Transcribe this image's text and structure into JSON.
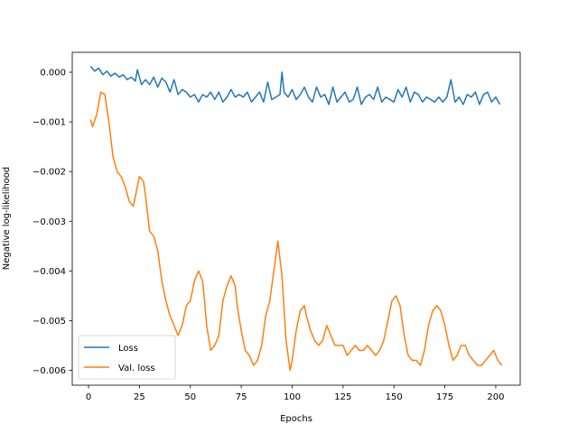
{
  "chart_data": {
    "type": "line",
    "title": "",
    "xlabel": "Epochs",
    "ylabel": "Negative log-likelihood",
    "xlim": [
      -8,
      212
    ],
    "ylim": [
      -0.0063,
      0.0004
    ],
    "xticks": [
      0,
      25,
      50,
      75,
      100,
      125,
      150,
      175,
      200
    ],
    "xtick_labels": [
      "0",
      "25",
      "50",
      "75",
      "100",
      "125",
      "150",
      "175",
      "200"
    ],
    "yticks": [
      0.0,
      -0.001,
      -0.002,
      -0.003,
      -0.004,
      -0.005,
      -0.006
    ],
    "ytick_labels": [
      "0.000",
      "−0.001",
      "−0.002",
      "−0.003",
      "−0.004",
      "−0.005",
      "−0.006"
    ],
    "grid": false,
    "legend_position": "lower-left",
    "series": [
      {
        "name": "Loss",
        "color": "#1f77b4",
        "x": [
          1,
          3,
          5,
          7,
          9,
          11,
          13,
          15,
          17,
          19,
          21,
          23,
          24,
          26,
          28,
          30,
          32,
          34,
          36,
          38,
          40,
          42,
          44,
          46,
          48,
          50,
          52,
          54,
          56,
          58,
          60,
          62,
          64,
          66,
          68,
          70,
          72,
          74,
          76,
          78,
          80,
          82,
          84,
          86,
          88,
          90,
          92,
          94,
          95,
          96,
          98,
          100,
          102,
          104,
          106,
          108,
          110,
          112,
          114,
          116,
          118,
          120,
          122,
          124,
          126,
          128,
          130,
          132,
          134,
          136,
          138,
          140,
          142,
          144,
          146,
          148,
          150,
          152,
          154,
          156,
          158,
          160,
          162,
          164,
          166,
          168,
          170,
          172,
          174,
          176,
          178,
          180,
          182,
          184,
          186,
          188,
          190,
          192,
          194,
          196,
          198,
          200,
          202
        ],
        "y": [
          0.00012,
          2e-05,
          8e-05,
          -5e-05,
          2e-05,
          -8e-05,
          -2e-05,
          -0.0001,
          -5e-05,
          -0.00015,
          -0.0001,
          -0.00018,
          5e-05,
          -0.00025,
          -0.00015,
          -0.00025,
          -0.0001,
          -0.0003,
          -0.00012,
          -0.0002,
          -0.0004,
          -0.00015,
          -0.00045,
          -0.00035,
          -0.0004,
          -0.0005,
          -0.00045,
          -0.0006,
          -0.00045,
          -0.0005,
          -0.0004,
          -0.00055,
          -0.0004,
          -0.0006,
          -0.0005,
          -0.00035,
          -0.0005,
          -0.00045,
          -0.0005,
          -0.0004,
          -0.0006,
          -0.0005,
          -0.0004,
          -0.0006,
          -0.0002,
          -0.00055,
          -0.0005,
          -0.00045,
          0.0,
          -0.0004,
          -0.0005,
          -0.00035,
          -0.00055,
          -0.00045,
          -0.0003,
          -0.0005,
          -0.0006,
          -0.0003,
          -0.0005,
          -0.00045,
          -0.00065,
          -0.0003,
          -0.0006,
          -0.0005,
          -0.0004,
          -0.0006,
          -0.00055,
          -0.0003,
          -0.00065,
          -0.0005,
          -0.00045,
          -0.00055,
          -0.0003,
          -0.0006,
          -0.0005,
          -0.00055,
          -0.0006,
          -0.00035,
          -0.0005,
          -0.0003,
          -0.0006,
          -0.0004,
          -0.00045,
          -0.0006,
          -0.0005,
          -0.00055,
          -0.0006,
          -0.0005,
          -0.0006,
          -0.0005,
          -0.00015,
          -0.0006,
          -0.0005,
          -0.00065,
          -0.00045,
          -0.0005,
          -0.0004,
          -0.00065,
          -0.00045,
          -0.0004,
          -0.0006,
          -0.0005,
          -0.00065
        ]
      },
      {
        "name": "Val. loss",
        "color": "#ff7f0e",
        "x": [
          1,
          2,
          4,
          6,
          8,
          10,
          12,
          14,
          16,
          18,
          20,
          22,
          24,
          25,
          27,
          28,
          30,
          32,
          34,
          36,
          38,
          40,
          42,
          44,
          46,
          48,
          50,
          52,
          54,
          56,
          57,
          58,
          60,
          62,
          64,
          66,
          68,
          70,
          72,
          73,
          75,
          77,
          79,
          81,
          83,
          85,
          87,
          89,
          91,
          93,
          95,
          97,
          99,
          100,
          102,
          104,
          106,
          107,
          109,
          111,
          113,
          115,
          117,
          119,
          121,
          123,
          125,
          127,
          129,
          131,
          133,
          135,
          137,
          139,
          141,
          143,
          145,
          147,
          149,
          151,
          153,
          155,
          157,
          159,
          161,
          163,
          165,
          167,
          169,
          171,
          173,
          175,
          177,
          179,
          181,
          183,
          185,
          187,
          189,
          191,
          193,
          195,
          197,
          199,
          201,
          203
        ],
        "y": [
          -0.00095,
          -0.0011,
          -0.00085,
          -0.0004,
          -0.00045,
          -0.001,
          -0.0017,
          -0.002,
          -0.0021,
          -0.0023,
          -0.0026,
          -0.0027,
          -0.0023,
          -0.0021,
          -0.0022,
          -0.0025,
          -0.0032,
          -0.0033,
          -0.0036,
          -0.0042,
          -0.0046,
          -0.0049,
          -0.0051,
          -0.0053,
          -0.0051,
          -0.0047,
          -0.0046,
          -0.0042,
          -0.004,
          -0.0042,
          -0.0046,
          -0.0051,
          -0.0056,
          -0.0055,
          -0.0053,
          -0.0046,
          -0.0043,
          -0.0041,
          -0.0043,
          -0.0047,
          -0.0052,
          -0.0056,
          -0.0057,
          -0.0059,
          -0.0058,
          -0.0055,
          -0.0049,
          -0.0046,
          -0.004,
          -0.0034,
          -0.0041,
          -0.0054,
          -0.006,
          -0.0058,
          -0.0052,
          -0.0048,
          -0.0047,
          -0.0049,
          -0.0052,
          -0.0054,
          -0.0055,
          -0.0054,
          -0.0051,
          -0.0053,
          -0.0055,
          -0.0055,
          -0.0055,
          -0.0057,
          -0.0056,
          -0.0055,
          -0.0056,
          -0.0056,
          -0.0055,
          -0.0056,
          -0.0057,
          -0.0056,
          -0.0054,
          -0.005,
          -0.0046,
          -0.0045,
          -0.0047,
          -0.0053,
          -0.0057,
          -0.0058,
          -0.0058,
          -0.0059,
          -0.0056,
          -0.0051,
          -0.0048,
          -0.0047,
          -0.0048,
          -0.0051,
          -0.0055,
          -0.0058,
          -0.0057,
          -0.0055,
          -0.0055,
          -0.0057,
          -0.0058,
          -0.0059,
          -0.0059,
          -0.0058,
          -0.0057,
          -0.0056,
          -0.0058,
          -0.0059
        ]
      }
    ]
  }
}
